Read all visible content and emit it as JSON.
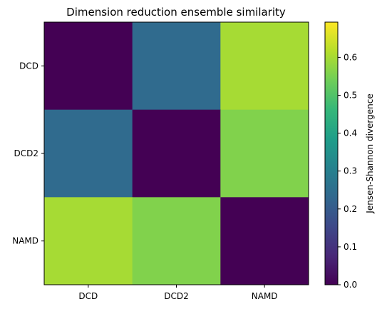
{
  "chart_data": {
    "type": "heatmap",
    "title": "Dimension reduction ensemble similarity",
    "x_categories": [
      "DCD",
      "DCD2",
      "NAMD"
    ],
    "y_categories": [
      "DCD",
      "DCD2",
      "NAMD"
    ],
    "values": [
      [
        0.0,
        0.24,
        0.6
      ],
      [
        0.24,
        0.0,
        0.56
      ],
      [
        0.6,
        0.56,
        0.0
      ]
    ],
    "colorbar": {
      "label": "Jensen-Shannon divergence",
      "range": [
        0.0,
        0.693
      ],
      "ticks": [
        0.0,
        0.1,
        0.2,
        0.3,
        0.4,
        0.5,
        0.6
      ],
      "tick_labels": [
        "0.0",
        "0.1",
        "0.2",
        "0.3",
        "0.4",
        "0.5",
        "0.6"
      ]
    },
    "colormap": "viridis",
    "colormap_stops": [
      "#440154",
      "#482878",
      "#3e4989",
      "#31688e",
      "#26828e",
      "#1f9e89",
      "#35b779",
      "#6ece58",
      "#b5de2b",
      "#fde725"
    ]
  }
}
